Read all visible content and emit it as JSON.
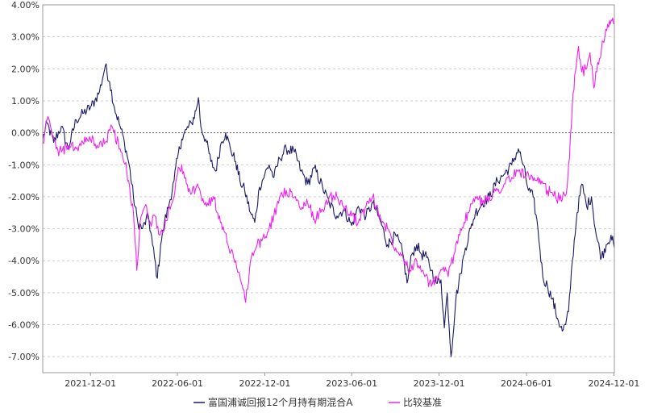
{
  "chart_data": {
    "type": "line",
    "title": "",
    "xlabel": "",
    "ylabel": "",
    "ylim": [
      -7.5,
      4.0
    ],
    "yticks": [
      4,
      3,
      2,
      1,
      0,
      -1,
      -2,
      -3,
      -4,
      -5,
      -6,
      -7
    ],
    "ytick_labels": [
      "4.00%",
      "3.00%",
      "2.00%",
      "1.00%",
      "0.00%",
      "-1.00%",
      "-2.00%",
      "-3.00%",
      "-4.00%",
      "-5.00%",
      "-6.00%",
      "-7.00%"
    ],
    "xlim": [
      "2021-08-23",
      "2024-12-02"
    ],
    "xticks": [
      "2021-12-01",
      "2022-06-01",
      "2022-12-01",
      "2023-06-01",
      "2023-12-01",
      "2024-06-01",
      "2024-12-01"
    ],
    "grid": true,
    "zero_line": true,
    "legend_position": "bottom-center",
    "series": [
      {
        "name": "富国浦诚回报12个月持有期混合A",
        "color": "#1a1a66",
        "points": [
          [
            "2021-08-23",
            -0.2
          ],
          [
            "2021-09-01",
            0.3
          ],
          [
            "2021-09-15",
            -0.3
          ],
          [
            "2021-10-01",
            0.2
          ],
          [
            "2021-10-15",
            -0.5
          ],
          [
            "2021-11-01",
            0.4
          ],
          [
            "2021-11-15",
            0.6
          ],
          [
            "2021-12-01",
            0.8
          ],
          [
            "2021-12-10",
            1.0
          ],
          [
            "2021-12-20",
            1.3
          ],
          [
            "2022-01-01",
            2.1
          ],
          [
            "2022-01-10",
            1.6
          ],
          [
            "2022-01-20",
            0.8
          ],
          [
            "2022-02-01",
            0.2
          ],
          [
            "2022-02-10",
            -0.3
          ],
          [
            "2022-02-20",
            -1.0
          ],
          [
            "2022-03-01",
            -2.0
          ],
          [
            "2022-03-10",
            -2.8
          ],
          [
            "2022-03-20",
            -3.0
          ],
          [
            "2022-04-01",
            -2.6
          ],
          [
            "2022-04-10",
            -3.5
          ],
          [
            "2022-04-20",
            -4.55
          ],
          [
            "2022-04-27",
            -3.5
          ],
          [
            "2022-05-05",
            -2.8
          ],
          [
            "2022-05-15",
            -2.2
          ],
          [
            "2022-05-25",
            -1.5
          ],
          [
            "2022-06-01",
            -0.8
          ],
          [
            "2022-06-10",
            -0.2
          ],
          [
            "2022-06-20",
            0.1
          ],
          [
            "2022-07-01",
            0.3
          ],
          [
            "2022-07-10",
            0.7
          ],
          [
            "2022-07-15",
            1.1
          ],
          [
            "2022-07-20",
            0.2
          ],
          [
            "2022-08-01",
            -0.3
          ],
          [
            "2022-08-10",
            -0.9
          ],
          [
            "2022-08-20",
            -1.2
          ],
          [
            "2022-09-01",
            -0.3
          ],
          [
            "2022-09-10",
            0.0
          ],
          [
            "2022-09-20",
            -0.5
          ],
          [
            "2022-10-01",
            -0.9
          ],
          [
            "2022-10-10",
            -1.5
          ],
          [
            "2022-10-20",
            -1.8
          ],
          [
            "2022-11-01",
            -2.5
          ],
          [
            "2022-11-10",
            -2.8
          ],
          [
            "2022-11-20",
            -1.7
          ],
          [
            "2022-12-01",
            -1.3
          ],
          [
            "2022-12-10",
            -1.0
          ],
          [
            "2022-12-20",
            -1.4
          ],
          [
            "2023-01-01",
            -0.8
          ],
          [
            "2023-01-15",
            -0.5
          ],
          [
            "2023-02-01",
            -0.6
          ],
          [
            "2023-02-15",
            -1.2
          ],
          [
            "2023-03-01",
            -1.6
          ],
          [
            "2023-03-15",
            -1.1
          ],
          [
            "2023-04-01",
            -1.7
          ],
          [
            "2023-04-15",
            -2.2
          ],
          [
            "2023-05-01",
            -2.6
          ],
          [
            "2023-05-15",
            -2.4
          ],
          [
            "2023-06-01",
            -2.9
          ],
          [
            "2023-06-15",
            -2.3
          ],
          [
            "2023-07-01",
            -2.6
          ],
          [
            "2023-07-15",
            -2.2
          ],
          [
            "2023-08-01",
            -2.8
          ],
          [
            "2023-08-15",
            -3.5
          ],
          [
            "2023-09-01",
            -3.2
          ],
          [
            "2023-09-15",
            -3.7
          ],
          [
            "2023-09-25",
            -4.7
          ],
          [
            "2023-10-05",
            -3.8
          ],
          [
            "2023-10-15",
            -3.5
          ],
          [
            "2023-10-25",
            -3.8
          ],
          [
            "2023-11-05",
            -3.9
          ],
          [
            "2023-11-15",
            -4.3
          ],
          [
            "2023-11-25",
            -4.7
          ],
          [
            "2023-12-05",
            -4.6
          ],
          [
            "2023-12-12",
            -6.1
          ],
          [
            "2023-12-18",
            -5.0
          ],
          [
            "2023-12-26",
            -7.0
          ],
          [
            "2024-01-05",
            -5.2
          ],
          [
            "2024-01-15",
            -4.4
          ],
          [
            "2024-01-25",
            -3.6
          ],
          [
            "2024-02-05",
            -3.0
          ],
          [
            "2024-02-15",
            -2.5
          ],
          [
            "2024-03-01",
            -2.2
          ],
          [
            "2024-03-15",
            -2.0
          ],
          [
            "2024-04-01",
            -1.5
          ],
          [
            "2024-04-15",
            -1.3
          ],
          [
            "2024-05-01",
            -1.0
          ],
          [
            "2024-05-15",
            -0.5
          ],
          [
            "2024-05-25",
            -1.0
          ],
          [
            "2024-06-05",
            -1.8
          ],
          [
            "2024-06-15",
            -2.0
          ],
          [
            "2024-06-25",
            -3.0
          ],
          [
            "2024-07-05",
            -4.5
          ],
          [
            "2024-07-15",
            -4.8
          ],
          [
            "2024-07-25",
            -5.2
          ],
          [
            "2024-08-05",
            -5.8
          ],
          [
            "2024-08-15",
            -6.2
          ],
          [
            "2024-08-22",
            -6.0
          ],
          [
            "2024-08-28",
            -5.6
          ],
          [
            "2024-09-05",
            -4.0
          ],
          [
            "2024-09-15",
            -2.5
          ],
          [
            "2024-09-25",
            -1.6
          ],
          [
            "2024-10-05",
            -2.3
          ],
          [
            "2024-10-15",
            -2.0
          ],
          [
            "2024-10-25",
            -3.2
          ],
          [
            "2024-11-05",
            -3.9
          ],
          [
            "2024-11-15",
            -3.5
          ],
          [
            "2024-11-25",
            -3.2
          ],
          [
            "2024-12-02",
            -3.6
          ]
        ]
      },
      {
        "name": "比较基准",
        "color": "#ee22ee",
        "points": [
          [
            "2021-08-23",
            -0.3
          ],
          [
            "2021-09-01",
            0.4
          ],
          [
            "2021-09-10",
            0.1
          ],
          [
            "2021-09-20",
            -0.5
          ],
          [
            "2021-10-01",
            -0.6
          ],
          [
            "2021-10-15",
            -0.4
          ],
          [
            "2021-11-01",
            -0.5
          ],
          [
            "2021-11-15",
            -0.3
          ],
          [
            "2021-12-01",
            -0.2
          ],
          [
            "2021-12-15",
            -0.4
          ],
          [
            "2022-01-01",
            -0.3
          ],
          [
            "2022-01-15",
            0.2
          ],
          [
            "2022-02-01",
            -0.5
          ],
          [
            "2022-02-15",
            -1.2
          ],
          [
            "2022-03-01",
            -2.5
          ],
          [
            "2022-03-08",
            -4.3
          ],
          [
            "2022-03-15",
            -2.8
          ],
          [
            "2022-03-25",
            -2.3
          ],
          [
            "2022-04-05",
            -2.8
          ],
          [
            "2022-04-15",
            -2.6
          ],
          [
            "2022-04-25",
            -3.2
          ],
          [
            "2022-05-05",
            -3.0
          ],
          [
            "2022-05-15",
            -2.3
          ],
          [
            "2022-05-25",
            -2.0
          ],
          [
            "2022-06-01",
            -1.3
          ],
          [
            "2022-06-10",
            -1.0
          ],
          [
            "2022-06-20",
            -1.6
          ],
          [
            "2022-07-01",
            -1.9
          ],
          [
            "2022-07-15",
            -1.7
          ],
          [
            "2022-08-01",
            -2.3
          ],
          [
            "2022-08-15",
            -2.0
          ],
          [
            "2022-09-01",
            -2.8
          ],
          [
            "2022-09-15",
            -3.5
          ],
          [
            "2022-10-01",
            -4.0
          ],
          [
            "2022-10-15",
            -4.8
          ],
          [
            "2022-10-22",
            -5.3
          ],
          [
            "2022-11-01",
            -4.0
          ],
          [
            "2022-11-15",
            -3.5
          ],
          [
            "2022-12-01",
            -3.3
          ],
          [
            "2022-12-10",
            -3.0
          ],
          [
            "2022-12-20",
            -2.6
          ],
          [
            "2023-01-01",
            -2.0
          ],
          [
            "2023-01-15",
            -1.8
          ],
          [
            "2023-02-01",
            -2.0
          ],
          [
            "2023-02-15",
            -2.4
          ],
          [
            "2023-03-01",
            -2.2
          ],
          [
            "2023-03-15",
            -2.7
          ],
          [
            "2023-04-01",
            -2.4
          ],
          [
            "2023-04-15",
            -2.0
          ],
          [
            "2023-05-01",
            -2.0
          ],
          [
            "2023-05-15",
            -2.3
          ],
          [
            "2023-06-01",
            -2.6
          ],
          [
            "2023-06-15",
            -2.8
          ],
          [
            "2023-07-01",
            -2.3
          ],
          [
            "2023-07-15",
            -2.0
          ],
          [
            "2023-08-01",
            -2.7
          ],
          [
            "2023-08-15",
            -3.0
          ],
          [
            "2023-09-01",
            -3.6
          ],
          [
            "2023-09-15",
            -3.8
          ],
          [
            "2023-10-01",
            -4.3
          ],
          [
            "2023-10-15",
            -4.0
          ],
          [
            "2023-11-01",
            -4.5
          ],
          [
            "2023-11-15",
            -4.8
          ],
          [
            "2023-12-01",
            -4.4
          ],
          [
            "2023-12-10",
            -4.2
          ],
          [
            "2023-12-20",
            -4.5
          ],
          [
            "2024-01-01",
            -3.8
          ],
          [
            "2024-01-15",
            -3.0
          ],
          [
            "2024-02-01",
            -2.5
          ],
          [
            "2024-02-15",
            -2.0
          ],
          [
            "2024-03-01",
            -2.2
          ],
          [
            "2024-03-15",
            -2.0
          ],
          [
            "2024-04-01",
            -1.8
          ],
          [
            "2024-04-15",
            -1.6
          ],
          [
            "2024-05-01",
            -1.4
          ],
          [
            "2024-05-15",
            -1.2
          ],
          [
            "2024-06-01",
            -1.3
          ],
          [
            "2024-06-15",
            -1.5
          ],
          [
            "2024-07-01",
            -1.6
          ],
          [
            "2024-07-15",
            -1.8
          ],
          [
            "2024-08-01",
            -2.0
          ],
          [
            "2024-08-15",
            -2.1
          ],
          [
            "2024-08-25",
            -1.7
          ],
          [
            "2024-08-30",
            -0.8
          ],
          [
            "2024-09-05",
            0.9
          ],
          [
            "2024-09-10",
            1.8
          ],
          [
            "2024-09-18",
            2.7
          ],
          [
            "2024-09-25",
            1.9
          ],
          [
            "2024-10-05",
            2.0
          ],
          [
            "2024-10-12",
            2.5
          ],
          [
            "2024-10-20",
            1.4
          ],
          [
            "2024-10-28",
            2.2
          ],
          [
            "2024-11-05",
            2.6
          ],
          [
            "2024-11-12",
            3.0
          ],
          [
            "2024-11-20",
            3.3
          ],
          [
            "2024-11-27",
            3.5
          ],
          [
            "2024-12-02",
            3.4
          ]
        ]
      }
    ]
  }
}
